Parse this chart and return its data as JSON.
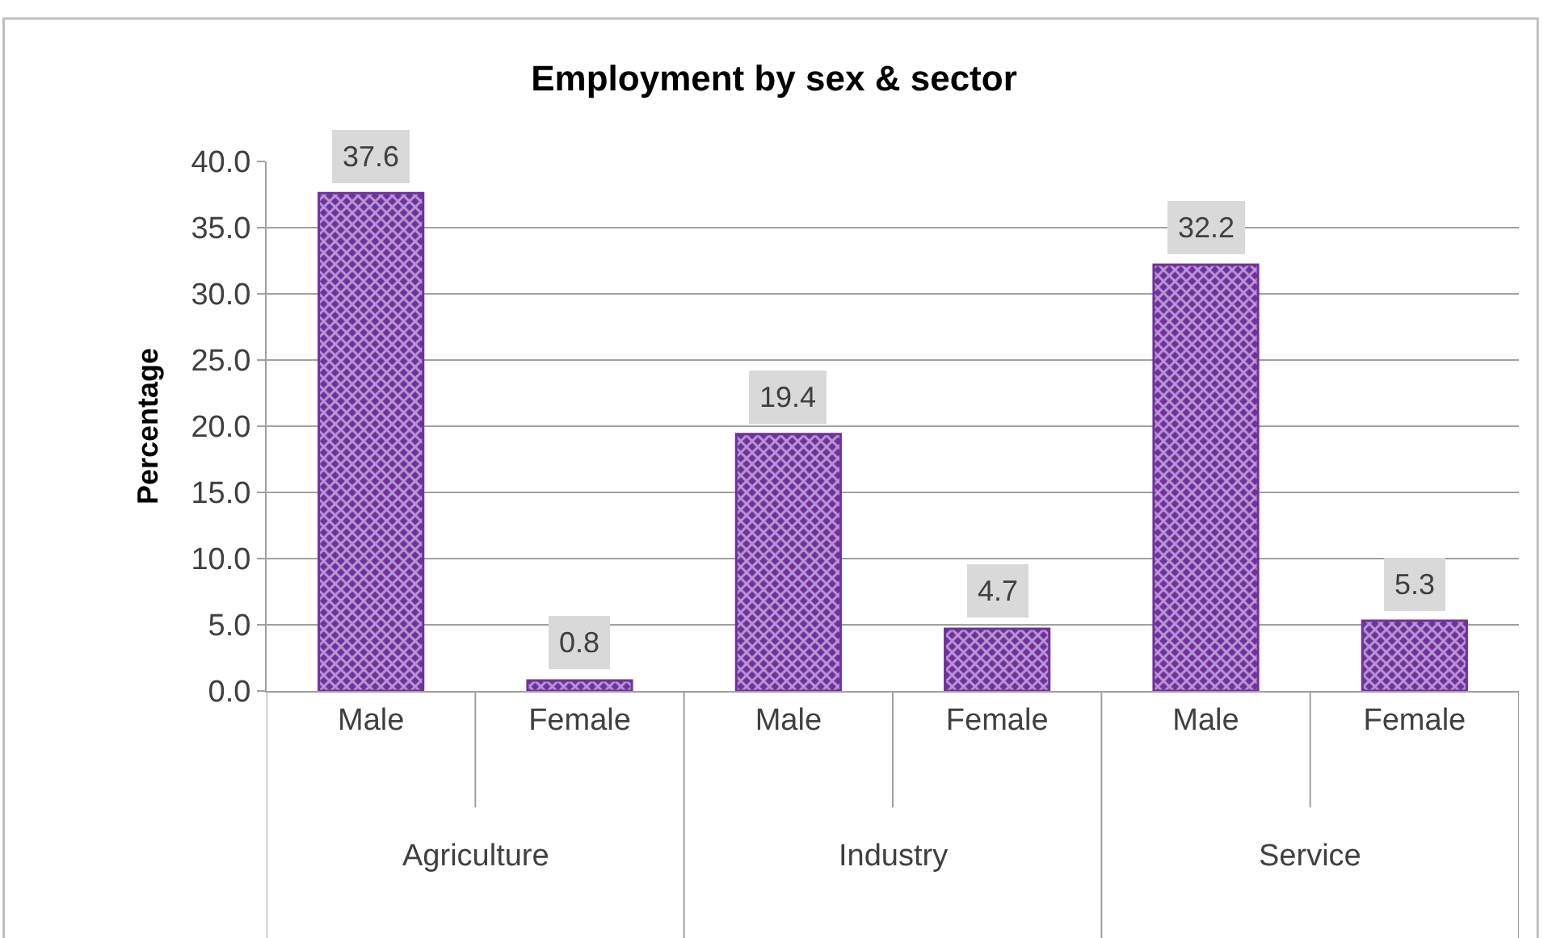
{
  "chart_data": {
    "type": "bar",
    "title": "Employment by sex & sector",
    "ylabel": "Percentage",
    "categories": [
      "Male",
      "Female",
      "Male",
      "Female",
      "Male",
      "Female"
    ],
    "values": [
      37.6,
      0.8,
      19.4,
      4.7,
      32.2,
      5.3
    ],
    "color": "#7030a0",
    "ylim": [
      0,
      40
    ],
    "yticks": [
      {
        "value": 0,
        "label": "0.0"
      },
      {
        "value": 5,
        "label": "5.0"
      },
      {
        "value": 10,
        "label": "10.0"
      },
      {
        "value": 15,
        "label": "15.0"
      },
      {
        "value": 20,
        "label": "20.0"
      },
      {
        "value": 25,
        "label": "25.0"
      },
      {
        "value": 30,
        "label": "30.0"
      },
      {
        "value": 35,
        "label": "35.0"
      },
      {
        "value": 40,
        "label": "40.0"
      }
    ],
    "grid": "y",
    "data_labels": true,
    "annotations": [
      "Agriculture",
      "Industry",
      "Service"
    ]
  }
}
